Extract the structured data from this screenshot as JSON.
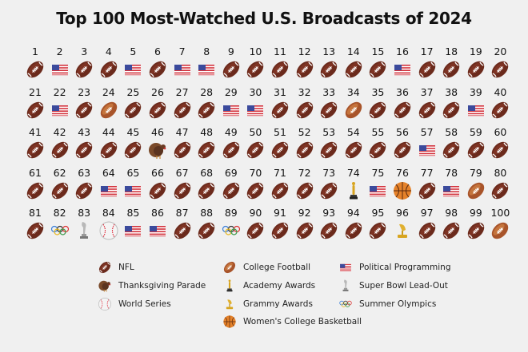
{
  "title": "Top 100 Most-Watched U.S. Broadcasts of 2024",
  "legend": [
    {
      "key": "NFL",
      "label": "NFL",
      "icon": "football-icon"
    },
    {
      "key": "THANKS",
      "label": "Thanksgiving Parade",
      "icon": "turkey-icon"
    },
    {
      "key": "WS",
      "label": "World Series",
      "icon": "baseball-icon"
    },
    {
      "key": "CFB",
      "label": "College Football",
      "icon": "college-football-icon"
    },
    {
      "key": "OSCAR",
      "label": "Academy Awards",
      "icon": "oscar-trophy-icon"
    },
    {
      "key": "GRAMMY",
      "label": "Grammy Awards",
      "icon": "gramophone-icon"
    },
    {
      "key": "WCBB",
      "label": "Women's College Basketball",
      "icon": "basketball-icon"
    },
    {
      "key": "POL",
      "label": "Political Programming",
      "icon": "us-flag-icon"
    },
    {
      "key": "SBLO",
      "label": "Super Bowl Lead-Out",
      "icon": "lombardi-trophy-icon"
    },
    {
      "key": "OLY",
      "label": "Summer Olympics",
      "icon": "olympic-rings-icon"
    }
  ],
  "chart_data": {
    "type": "table",
    "title": "Top 100 Most-Watched U.S. Broadcasts of 2024",
    "ranks": [
      1,
      2,
      3,
      4,
      5,
      6,
      7,
      8,
      9,
      10,
      11,
      12,
      13,
      14,
      15,
      16,
      17,
      18,
      19,
      20,
      21,
      22,
      23,
      24,
      25,
      26,
      27,
      28,
      29,
      30,
      31,
      32,
      33,
      34,
      35,
      36,
      37,
      38,
      39,
      40,
      41,
      42,
      43,
      44,
      45,
      46,
      47,
      48,
      49,
      50,
      51,
      52,
      53,
      54,
      55,
      56,
      57,
      58,
      59,
      60,
      61,
      62,
      63,
      64,
      65,
      66,
      67,
      68,
      69,
      70,
      71,
      72,
      73,
      74,
      75,
      76,
      77,
      78,
      79,
      80,
      81,
      82,
      83,
      84,
      85,
      86,
      87,
      88,
      89,
      90,
      91,
      92,
      93,
      94,
      95,
      96,
      97,
      98,
      99,
      100
    ],
    "categories": [
      "NFL",
      "POL",
      "NFL",
      "NFL",
      "POL",
      "NFL",
      "POL",
      "POL",
      "NFL",
      "NFL",
      "NFL",
      "NFL",
      "NFL",
      "NFL",
      "NFL",
      "POL",
      "NFL",
      "NFL",
      "NFL",
      "NFL",
      "NFL",
      "POL",
      "NFL",
      "CFB",
      "NFL",
      "NFL",
      "NFL",
      "NFL",
      "POL",
      "POL",
      "NFL",
      "NFL",
      "NFL",
      "CFB",
      "NFL",
      "NFL",
      "NFL",
      "NFL",
      "POL",
      "NFL",
      "NFL",
      "NFL",
      "NFL",
      "NFL",
      "NFL",
      "THANKS",
      "NFL",
      "NFL",
      "NFL",
      "NFL",
      "NFL",
      "NFL",
      "NFL",
      "NFL",
      "NFL",
      "NFL",
      "POL",
      "NFL",
      "NFL",
      "NFL",
      "NFL",
      "NFL",
      "NFL",
      "POL",
      "POL",
      "NFL",
      "NFL",
      "NFL",
      "NFL",
      "NFL",
      "NFL",
      "NFL",
      "NFL",
      "OSCAR",
      "POL",
      "WCBB",
      "NFL",
      "POL",
      "CFB",
      "NFL",
      "NFL",
      "OLY",
      "SBLO",
      "WS",
      "POL",
      "POL",
      "NFL",
      "NFL",
      "OLY",
      "NFL",
      "NFL",
      "NFL",
      "NFL",
      "NFL",
      "NFL",
      "GRAMMY",
      "NFL",
      "NFL",
      "NFL",
      "CFB"
    ]
  }
}
